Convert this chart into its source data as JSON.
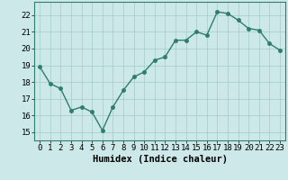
{
  "x": [
    0,
    1,
    2,
    3,
    4,
    5,
    6,
    7,
    8,
    9,
    10,
    11,
    12,
    13,
    14,
    15,
    16,
    17,
    18,
    19,
    20,
    21,
    22,
    23
  ],
  "y": [
    18.9,
    17.9,
    17.6,
    16.3,
    16.5,
    16.2,
    15.1,
    16.5,
    17.5,
    18.3,
    18.6,
    19.3,
    19.5,
    20.5,
    20.5,
    21.0,
    20.8,
    22.2,
    22.1,
    21.7,
    21.2,
    21.1,
    20.3,
    19.9
  ],
  "line_color": "#2e7d6e",
  "marker": "o",
  "markersize": 2.5,
  "linewidth": 1.0,
  "background_color": "#cce8e8",
  "grid_color": "#aacece",
  "xlabel": "Humidex (Indice chaleur)",
  "xlabel_fontsize": 7.5,
  "ylim": [
    14.5,
    22.8
  ],
  "xlim": [
    -0.5,
    23.5
  ],
  "yticks": [
    15,
    16,
    17,
    18,
    19,
    20,
    21,
    22
  ],
  "xticks": [
    0,
    1,
    2,
    3,
    4,
    5,
    6,
    7,
    8,
    9,
    10,
    11,
    12,
    13,
    14,
    15,
    16,
    17,
    18,
    19,
    20,
    21,
    22,
    23
  ],
  "tick_fontsize": 6.5,
  "spine_color": "#2e7d6e"
}
